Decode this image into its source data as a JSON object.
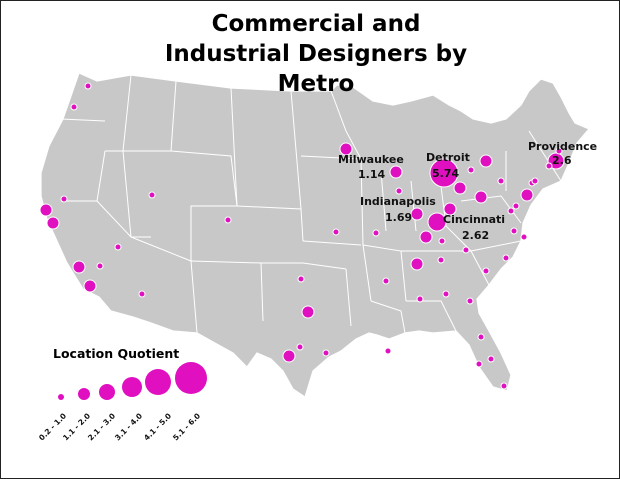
{
  "map": {
    "title_line1": "Commercial and",
    "title_line2": "Industrial Designers by Metro",
    "bubble_color": "#e010c0",
    "land_color": "#c8c8c8",
    "border_color": "#ffffff",
    "labeled_metros": [
      {
        "name": "Milwaukee",
        "value": "1.14"
      },
      {
        "name": "Detroit",
        "value": "5.74"
      },
      {
        "name": "Providence",
        "value": "2.6"
      },
      {
        "name": "Indianapolis",
        "value": "1.69"
      },
      {
        "name": "Cincinnati",
        "value": "2.62"
      }
    ]
  },
  "legend": {
    "title": "Location Quotient",
    "classes": [
      "0.2 - 1.0",
      "1.1 - 2.0",
      "2.1 - 3.0",
      "3.1 - 4.0",
      "4.1 - 5.0",
      "5.1 - 6.0"
    ]
  }
}
